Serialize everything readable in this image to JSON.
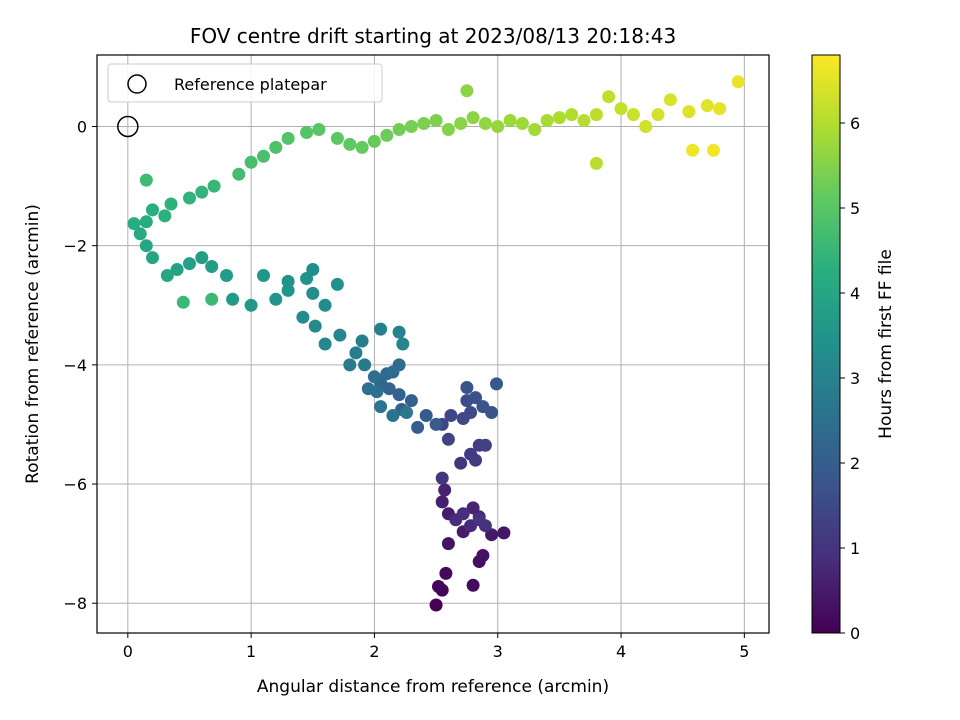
{
  "chart_data": {
    "type": "scatter",
    "title": "FOV centre drift starting at 2023/08/13 20:18:43",
    "xlabel": "Angular distance from reference (arcmin)",
    "ylabel": "Rotation from reference (arcmin)",
    "xlim": [
      -0.25,
      5.2
    ],
    "ylim": [
      -8.5,
      1.2
    ],
    "xticks": [
      0,
      1,
      2,
      3,
      4,
      5
    ],
    "yticks": [
      0,
      -2,
      -4,
      -6,
      -8
    ],
    "grid": true,
    "colormap": "viridis",
    "colorbar": {
      "label": "Hours from first FF file",
      "range": [
        0,
        6.8
      ],
      "ticks": [
        0,
        1,
        2,
        3,
        4,
        5,
        6
      ]
    },
    "reference": {
      "x": 0,
      "y": 0,
      "label": "Reference platepar"
    },
    "legend_position": "upper-left",
    "series": [
      {
        "points": [
          [
            2.5,
            -8.03,
            0.0
          ],
          [
            2.55,
            -7.78,
            0.05
          ],
          [
            2.52,
            -7.72,
            0.1
          ],
          [
            2.58,
            -7.5,
            0.15
          ],
          [
            2.8,
            -7.7,
            0.2
          ],
          [
            2.85,
            -7.3,
            0.25
          ],
          [
            2.88,
            -7.2,
            0.3
          ],
          [
            2.6,
            -7.0,
            0.35
          ],
          [
            3.05,
            -6.82,
            0.4
          ],
          [
            2.95,
            -6.85,
            0.45
          ],
          [
            2.72,
            -6.8,
            0.5
          ],
          [
            2.6,
            -6.5,
            0.55
          ],
          [
            2.55,
            -6.3,
            0.6
          ],
          [
            2.57,
            -6.1,
            0.65
          ],
          [
            2.8,
            -6.4,
            0.7
          ],
          [
            2.85,
            -6.55,
            0.75
          ],
          [
            2.78,
            -6.7,
            0.8
          ],
          [
            2.66,
            -6.6,
            0.85
          ],
          [
            2.72,
            -6.5,
            0.9
          ],
          [
            2.9,
            -6.7,
            0.95
          ],
          [
            2.85,
            -6.6,
            1.0
          ],
          [
            2.55,
            -5.9,
            1.05
          ],
          [
            2.7,
            -5.65,
            1.1
          ],
          [
            2.78,
            -5.5,
            1.15
          ],
          [
            2.82,
            -5.6,
            1.2
          ],
          [
            2.85,
            -5.35,
            1.25
          ],
          [
            2.9,
            -5.35,
            1.3
          ],
          [
            2.6,
            -5.25,
            1.35
          ],
          [
            2.55,
            -5.0,
            1.4
          ],
          [
            2.62,
            -4.85,
            1.45
          ],
          [
            2.72,
            -4.9,
            1.5
          ],
          [
            2.78,
            -4.8,
            1.55
          ],
          [
            2.75,
            -4.6,
            1.6
          ],
          [
            2.82,
            -4.55,
            1.65
          ],
          [
            2.75,
            -4.38,
            1.7
          ],
          [
            2.88,
            -4.7,
            1.75
          ],
          [
            2.95,
            -4.8,
            1.8
          ],
          [
            2.99,
            -4.32,
            1.85
          ],
          [
            2.42,
            -4.85,
            1.9
          ],
          [
            2.5,
            -5.0,
            1.95
          ],
          [
            2.35,
            -5.05,
            2.0
          ],
          [
            2.22,
            -4.75,
            2.05
          ],
          [
            2.3,
            -4.6,
            2.1
          ],
          [
            2.2,
            -4.5,
            2.15
          ],
          [
            2.12,
            -4.4,
            2.2
          ],
          [
            2.05,
            -4.3,
            2.25
          ],
          [
            2.1,
            -4.15,
            2.3
          ],
          [
            2.2,
            -4.0,
            2.35
          ],
          [
            2.15,
            -4.12,
            2.4
          ],
          [
            2.0,
            -4.2,
            2.45
          ],
          [
            1.95,
            -4.4,
            2.5
          ],
          [
            2.02,
            -4.45,
            2.55
          ],
          [
            2.15,
            -4.85,
            2.6
          ],
          [
            2.05,
            -4.7,
            2.65
          ],
          [
            2.26,
            -4.8,
            2.7
          ],
          [
            1.92,
            -4.0,
            2.75
          ],
          [
            1.8,
            -4.0,
            2.8
          ],
          [
            1.85,
            -3.8,
            2.85
          ],
          [
            1.9,
            -3.6,
            2.9
          ],
          [
            2.05,
            -3.4,
            2.95
          ],
          [
            2.2,
            -3.45,
            3.0
          ],
          [
            2.23,
            -3.65,
            3.05
          ],
          [
            1.72,
            -3.5,
            3.1
          ],
          [
            1.6,
            -3.65,
            3.15
          ],
          [
            1.52,
            -3.35,
            3.2
          ],
          [
            1.42,
            -3.2,
            3.25
          ],
          [
            1.6,
            -3.0,
            3.3
          ],
          [
            1.5,
            -2.8,
            3.35
          ],
          [
            1.7,
            -2.65,
            3.4
          ],
          [
            1.45,
            -2.55,
            3.45
          ],
          [
            1.3,
            -2.75,
            3.5
          ],
          [
            1.2,
            -2.9,
            3.55
          ],
          [
            1.0,
            -3.0,
            3.6
          ],
          [
            0.85,
            -2.9,
            3.65
          ],
          [
            0.8,
            -2.5,
            3.7
          ],
          [
            0.68,
            -2.35,
            3.75
          ],
          [
            0.6,
            -2.2,
            3.8
          ],
          [
            0.5,
            -2.3,
            3.85
          ],
          [
            0.4,
            -2.4,
            3.9
          ],
          [
            0.32,
            -2.5,
            3.95
          ],
          [
            0.2,
            -2.2,
            4.0
          ],
          [
            0.15,
            -2.0,
            4.05
          ],
          [
            0.1,
            -1.8,
            4.1
          ],
          [
            0.15,
            -1.6,
            4.15
          ],
          [
            0.05,
            -1.63,
            4.2
          ],
          [
            0.2,
            -1.4,
            4.25
          ],
          [
            0.3,
            -1.5,
            4.3
          ],
          [
            0.35,
            -1.3,
            4.35
          ],
          [
            0.5,
            -1.2,
            4.4
          ],
          [
            0.6,
            -1.1,
            4.45
          ],
          [
            0.7,
            -1.0,
            4.5
          ],
          [
            0.45,
            -2.95,
            4.55
          ],
          [
            0.68,
            -2.9,
            4.6
          ],
          [
            0.15,
            -0.9,
            4.65
          ],
          [
            0.9,
            -0.8,
            4.7
          ],
          [
            1.0,
            -0.6,
            4.75
          ],
          [
            1.1,
            -0.5,
            4.8
          ],
          [
            1.2,
            -0.35,
            4.85
          ],
          [
            1.3,
            -0.2,
            4.9
          ],
          [
            1.45,
            -0.1,
            4.95
          ],
          [
            1.55,
            -0.05,
            5.0
          ],
          [
            1.7,
            -0.2,
            5.05
          ],
          [
            1.8,
            -0.3,
            5.1
          ],
          [
            1.9,
            -0.35,
            5.15
          ],
          [
            2.0,
            -0.25,
            5.2
          ],
          [
            2.1,
            -0.15,
            5.25
          ],
          [
            2.2,
            -0.05,
            5.3
          ],
          [
            2.3,
            0.0,
            5.35
          ],
          [
            2.4,
            0.05,
            5.4
          ],
          [
            2.5,
            0.1,
            5.45
          ],
          [
            2.6,
            -0.05,
            5.5
          ],
          [
            2.7,
            0.05,
            5.55
          ],
          [
            2.8,
            0.15,
            5.6
          ],
          [
            2.9,
            0.05,
            5.65
          ],
          [
            3.0,
            0.0,
            5.7
          ],
          [
            3.1,
            0.1,
            5.75
          ],
          [
            3.2,
            0.05,
            5.8
          ],
          [
            3.3,
            -0.05,
            5.85
          ],
          [
            3.4,
            0.1,
            5.9
          ],
          [
            3.5,
            0.15,
            5.95
          ],
          [
            3.6,
            0.2,
            6.0
          ],
          [
            3.7,
            0.1,
            6.05
          ],
          [
            3.8,
            0.2,
            6.1
          ],
          [
            3.9,
            0.5,
            6.15
          ],
          [
            4.0,
            0.3,
            6.2
          ],
          [
            4.1,
            0.2,
            6.25
          ],
          [
            4.2,
            0.0,
            6.3
          ],
          [
            4.3,
            0.2,
            6.35
          ],
          [
            4.4,
            0.45,
            6.4
          ],
          [
            4.55,
            0.25,
            6.45
          ],
          [
            4.7,
            0.35,
            6.5
          ],
          [
            4.8,
            0.3,
            6.55
          ],
          [
            4.95,
            0.75,
            6.6
          ],
          [
            4.58,
            -0.4,
            6.65
          ],
          [
            4.75,
            -0.4,
            6.7
          ],
          [
            3.8,
            -0.62,
            6.1
          ],
          [
            2.75,
            0.6,
            5.6
          ],
          [
            1.5,
            -2.4,
            3.3
          ],
          [
            1.3,
            -2.6,
            3.45
          ],
          [
            1.1,
            -2.5,
            3.55
          ]
        ]
      }
    ]
  }
}
